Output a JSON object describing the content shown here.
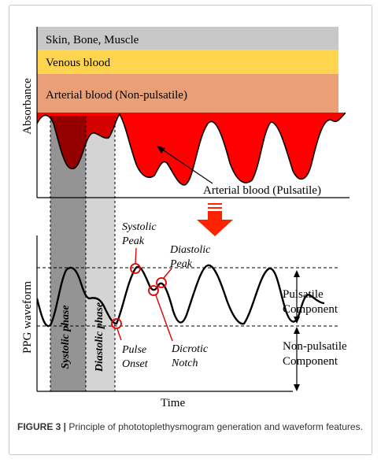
{
  "top_panel": {
    "layer_tissue": "Skin, Bone, Muscle",
    "layer_venous": "Venous blood",
    "layer_arterial_np": "Arterial blood (Non-pulsatile)",
    "pulsatile_label": "Arterial blood (Pulsatile)",
    "y_axis_label": "Absorbance"
  },
  "bottom_panel": {
    "y_axis_label": "PPG waveform",
    "x_axis_label": "Time",
    "systolic_phase": "Systolic phase",
    "diastolic_phase": "Diastolic phase",
    "systolic_peak": [
      "Systolic",
      "Peak"
    ],
    "diastolic_peak": [
      "Diastolic",
      "Peak"
    ],
    "dicrotic_notch": [
      "Dicrotic",
      "Notch"
    ],
    "pulse_onset": [
      "Pulse",
      "Onset"
    ],
    "pulsatile_component": [
      "Pulsatile",
      "Component"
    ],
    "non_pulsatile_component": [
      "Non-pulsatile",
      "Component"
    ]
  },
  "colors": {
    "tissue": "#c8c8c8",
    "venous": "#ffd54f",
    "arterial_np": "#e9a077",
    "pulsatile": "#ff0000",
    "arrow": "#ff2200",
    "marker": "#e00000"
  },
  "caption": {
    "label": "FIGURE 3 |",
    "text": " Principle of phototoplethysmogram generation and waveform features."
  }
}
